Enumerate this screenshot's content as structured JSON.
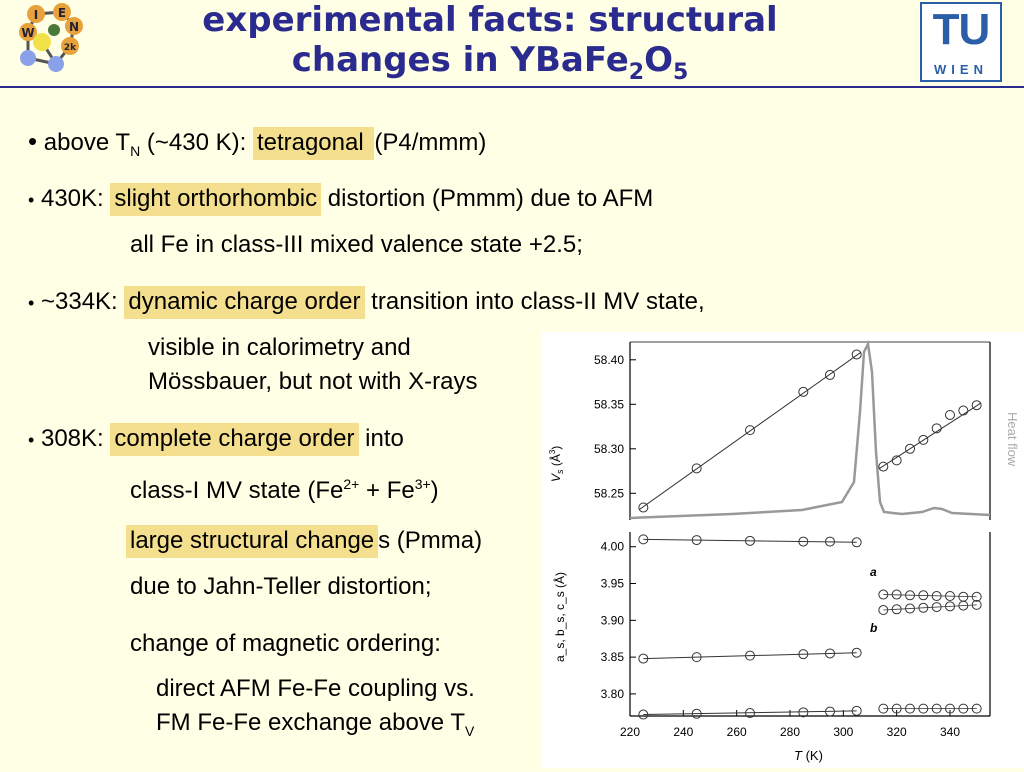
{
  "title": {
    "line1": "experimental facts: structural",
    "line2_pre": "changes in YBaFe",
    "sub2": "2",
    "line2_mid": "O",
    "sub5": "5"
  },
  "logo_left": {
    "letters": [
      "I",
      "E",
      "W",
      "N",
      "2k"
    ]
  },
  "logo_right": {
    "tu": "TU",
    "wien": "WIEN"
  },
  "bullets": {
    "b1": {
      "pre": "above T",
      "sub": "N",
      "mid": " (~430 K): ",
      "hl": "tetragonal ",
      "post": " (P4/mmm)"
    },
    "b2": {
      "pre": "430K: ",
      "hl": "slight orthorhombic",
      "post": " distortion (Pmmm) due to AFM",
      "cont": "all Fe in class-III mixed valence state +2.5;"
    },
    "b3": {
      "pre": "~334K: ",
      "hl": "dynamic charge order",
      "post": " transition into class-II MV state,",
      "cont1": "visible in calorimetry and",
      "cont2": "Mössbauer, but not with X-rays"
    },
    "b4": {
      "pre": "308K: ",
      "hl": "complete charge order",
      "post": " into",
      "cont1_pre": "class-I MV state (Fe",
      "sup1": "2+",
      "cont1_mid": " + Fe",
      "sup2": "3+",
      "cont1_post": ")",
      "hl2": "large structural change",
      "post2": "s (Pmma)",
      "cont3": "due to Jahn-Teller distortion;",
      "cont4": "change of magnetic ordering:",
      "cont5": "direct AFM Fe-Fe coupling vs.",
      "cont6_pre": "FM Fe-Fe exchange above T",
      "cont6_sub": "V"
    }
  },
  "chart_data": [
    {
      "type": "scatter",
      "ylabel": "V_s (Å³)",
      "ylabel_parts": {
        "v": "V",
        "s": "s",
        "unit_open": " (Å",
        "sup": "3",
        "unit_close": ")"
      },
      "right_label": "Heat flow",
      "ylim": [
        58.22,
        58.42
      ],
      "yticks": [
        "58.40",
        "58.35",
        "58.30",
        "58.25"
      ],
      "series": [
        {
          "x": [
            225,
            245,
            265,
            285,
            295,
            305
          ],
          "y": [
            58.234,
            58.278,
            58.321,
            58.364,
            58.383,
            58.406
          ]
        },
        {
          "x": [
            315,
            320,
            325,
            330,
            335,
            340,
            345,
            350
          ],
          "y": [
            58.28,
            58.287,
            58.3,
            58.31,
            58.323,
            58.338,
            58.343,
            58.349
          ]
        }
      ]
    },
    {
      "type": "scatter",
      "ylabel": "a_s, b_s, c_s (Å)",
      "ylim": [
        3.77,
        4.02
      ],
      "yticks": [
        "4.00",
        "3.95",
        "3.90",
        "3.85",
        "3.80"
      ],
      "xlabel_parts": {
        "t": "T",
        "unit": " (K)"
      },
      "xticks": [
        "220",
        "240",
        "260",
        "280",
        "300",
        "320",
        "340"
      ],
      "xlim": [
        220,
        355
      ],
      "annotations": [
        "a",
        "b"
      ],
      "series": [
        {
          "x": [
            225,
            245,
            265,
            285,
            295,
            305
          ],
          "y": [
            4.01,
            4.009,
            4.008,
            4.007,
            4.007,
            4.006
          ]
        },
        {
          "x": [
            225,
            245,
            265,
            285,
            295,
            305
          ],
          "y": [
            3.848,
            3.85,
            3.852,
            3.854,
            3.855,
            3.856
          ]
        },
        {
          "x": [
            225,
            245,
            265,
            285,
            295,
            305
          ],
          "y": [
            3.772,
            3.773,
            3.774,
            3.775,
            3.776,
            3.777
          ]
        },
        {
          "x": [
            315,
            320,
            325,
            330,
            335,
            340,
            345,
            350
          ],
          "y": [
            3.935,
            3.935,
            3.934,
            3.934,
            3.933,
            3.933,
            3.932,
            3.932
          ]
        },
        {
          "x": [
            315,
            320,
            325,
            330,
            335,
            340,
            345,
            350
          ],
          "y": [
            3.914,
            3.915,
            3.916,
            3.917,
            3.918,
            3.919,
            3.92,
            3.921
          ]
        },
        {
          "x": [
            315,
            320,
            325,
            330,
            335,
            340,
            345,
            350
          ],
          "y": [
            3.78,
            3.78,
            3.78,
            3.78,
            3.78,
            3.78,
            3.78,
            3.78
          ]
        }
      ]
    }
  ]
}
